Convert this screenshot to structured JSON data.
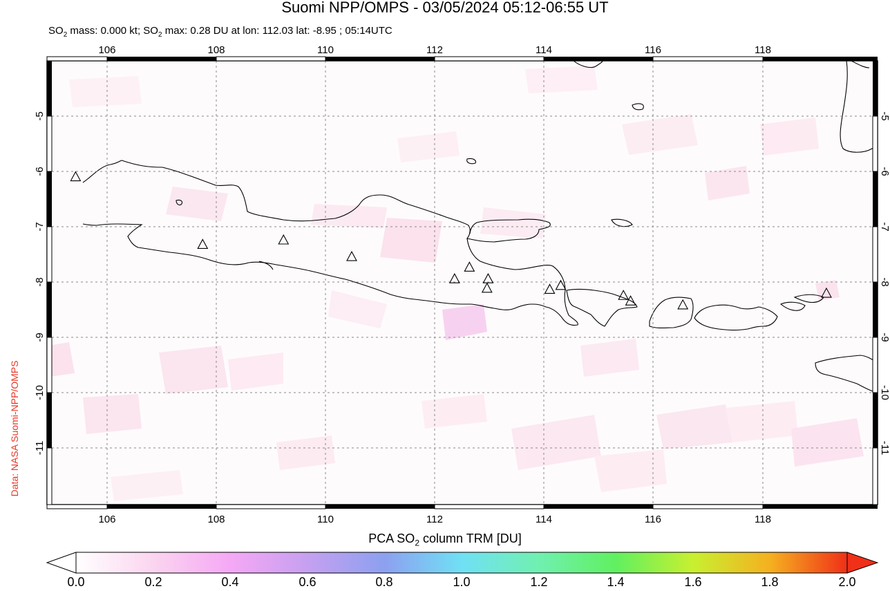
{
  "title": "Suomi NPP/OMPS - 03/05/2024 05:12-06:55 UT",
  "subtitle": {
    "part1": "SO",
    "sub1": "2",
    "part2": " mass: 0.000 kt; SO",
    "sub2": "2",
    "part3": " max: 0.28 DU at lon: 112.03 lat: -8.95 ; 05:14UTC"
  },
  "credit": "Data: NASA Suomi-NPP/OMPS",
  "map": {
    "lon_range": [
      104.9,
      120.0
    ],
    "lat_range": [
      -12.0,
      -4.0
    ],
    "lon_ticks": [
      "106",
      "108",
      "110",
      "112",
      "114",
      "116",
      "118"
    ],
    "lat_ticks": [
      "-5",
      "-6",
      "-7",
      "-8",
      "-9",
      "-10",
      "-11"
    ],
    "volcanoes": [
      [
        105.42,
        -6.1
      ],
      [
        107.73,
        -7.32
      ],
      [
        109.2,
        -7.24
      ],
      [
        110.44,
        -7.54
      ],
      [
        112.31,
        -7.94
      ],
      [
        112.58,
        -7.73
      ],
      [
        112.92,
        -7.94
      ],
      [
        112.9,
        -8.11
      ],
      [
        114.04,
        -8.13
      ],
      [
        114.24,
        -8.06
      ],
      [
        115.38,
        -8.24
      ],
      [
        115.51,
        -8.34
      ],
      [
        116.46,
        -8.41
      ],
      [
        119.07,
        -8.2
      ]
    ],
    "volcano_marker": "triangle-outline",
    "grid": true
  },
  "colorbar": {
    "title_part1": "PCA SO",
    "title_sub": "2",
    "title_part2": " column TRM [DU]",
    "ticks": [
      "0.0",
      "0.2",
      "0.4",
      "0.6",
      "0.8",
      "1.0",
      "1.2",
      "1.4",
      "1.6",
      "1.8",
      "2.0"
    ],
    "colors": [
      "#ffffff",
      "#fbd5f0",
      "#f5a8f5",
      "#c6a0f0",
      "#8da0f0",
      "#70e0f5",
      "#70f0b0",
      "#60f060",
      "#c8f030",
      "#f5b020",
      "#f03018"
    ]
  }
}
